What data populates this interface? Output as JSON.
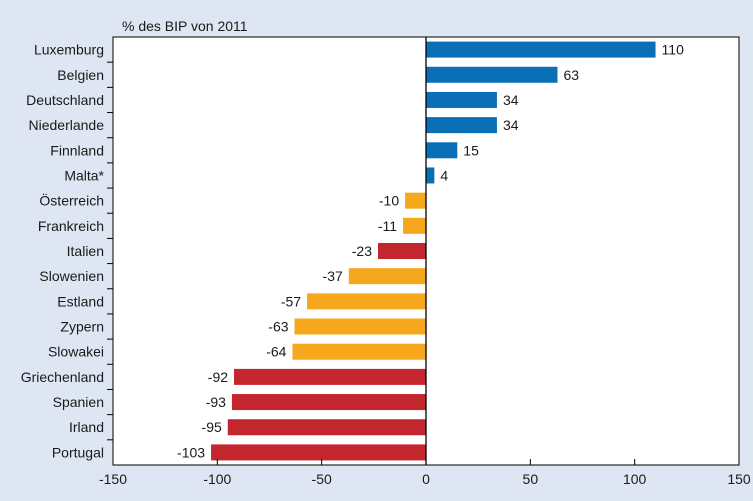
{
  "chart_data": {
    "type": "bar",
    "orientation": "horizontal",
    "unit_label": "% des BIP von 2011",
    "categories": [
      "Luxemburg",
      "Belgien",
      "Deutschland",
      "Niederlande",
      "Finnland",
      "Malta*",
      "Österreich",
      "Frankreich",
      "Italien",
      "Slowenien",
      "Estland",
      "Zypern",
      "Slowakei",
      "Griechenland",
      "Spanien",
      "Irland",
      "Portugal"
    ],
    "values": [
      110,
      63,
      34,
      34,
      15,
      4,
      -10,
      -11,
      -23,
      -37,
      -57,
      -63,
      -64,
      -92,
      -93,
      -95,
      -103
    ],
    "bar_colors": [
      "#0b6fb8",
      "#0b6fb8",
      "#0b6fb8",
      "#0b6fb8",
      "#0b6fb8",
      "#0b6fb8",
      "#f5a81c",
      "#f5a81c",
      "#c4262e",
      "#f5a81c",
      "#f5a81c",
      "#f5a81c",
      "#f5a81c",
      "#c4262e",
      "#c4262e",
      "#c4262e",
      "#c4262e"
    ],
    "xlim": [
      -150,
      150
    ],
    "xticks": [
      -150,
      -100,
      -50,
      0,
      50,
      100,
      150
    ],
    "grid": false
  }
}
